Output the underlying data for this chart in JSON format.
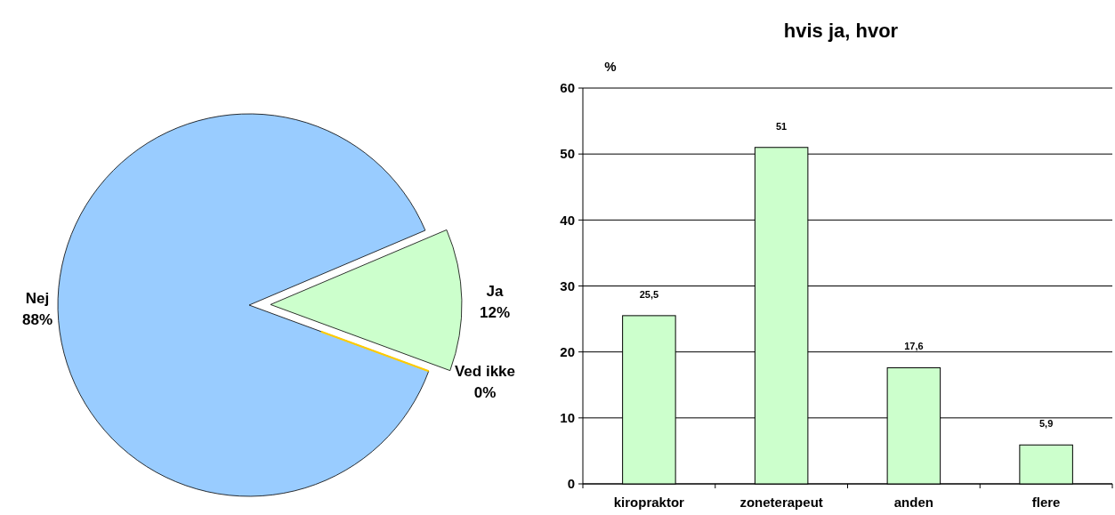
{
  "chart_data": [
    {
      "type": "pie",
      "categories": [
        "Nej",
        "Ja",
        "Ved ikke"
      ],
      "values": [
        88,
        12,
        0
      ],
      "colors": [
        "#99ccff",
        "#ccffcc",
        "#ffcc00"
      ],
      "value_labels": [
        "88%",
        "12%",
        "0%"
      ]
    },
    {
      "type": "bar",
      "title": "hvis ja, hvor",
      "ylabel": "%",
      "categories": [
        "kiropraktor",
        "zoneterapeut",
        "anden",
        "flere"
      ],
      "values": [
        25.5,
        51,
        17.6,
        5.9
      ],
      "color": "#ccffcc",
      "value_labels": [
        "25,5",
        "51",
        "17,6",
        "5,9"
      ],
      "ylim": [
        0,
        60
      ],
      "yticks": [
        0,
        10,
        20,
        30,
        40,
        50,
        60
      ],
      "grid": "y"
    }
  ]
}
